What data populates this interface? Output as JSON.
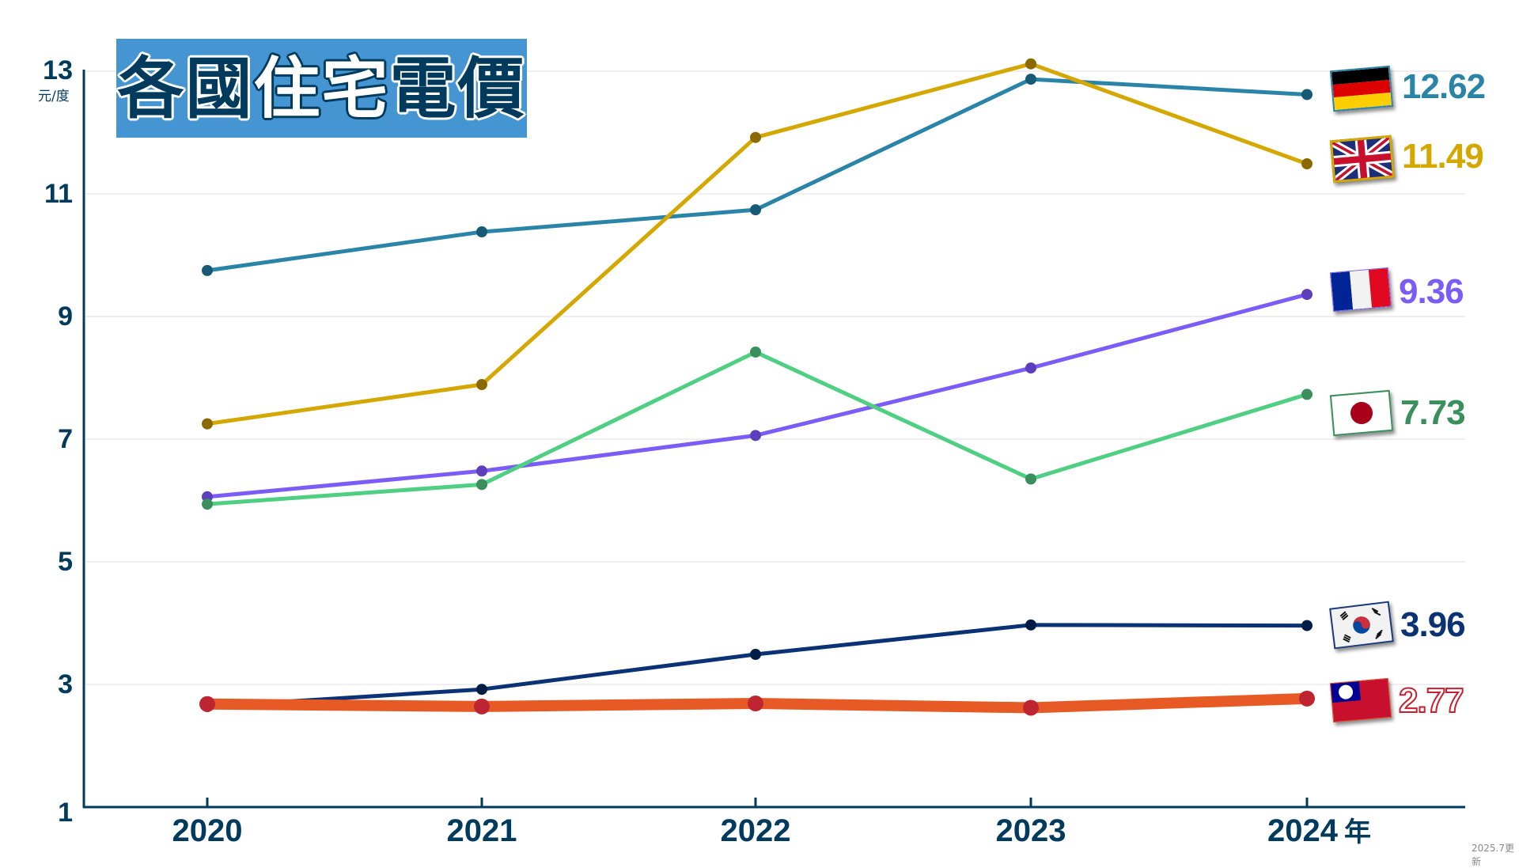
{
  "title": {
    "part1": "各國",
    "part2": "住宅",
    "part3": "電價"
  },
  "y_axis": {
    "unit": "元/度",
    "ticks": [
      "13",
      "11",
      "9",
      "7",
      "5",
      "3",
      "1"
    ]
  },
  "x_axis": {
    "ticks": [
      "2020",
      "2021",
      "2022",
      "2023",
      "2024"
    ],
    "unit": "年"
  },
  "footnote": "2025.7更新",
  "colors": {
    "axis": "#003a5c",
    "title_bg": "#4495d1",
    "germany": "#2a84a8",
    "uk": "#d4a800",
    "france": "#7b5cf6",
    "japan": "#4fcf82",
    "korea": "#0a3275",
    "taiwan": "#e85a25"
  },
  "end_labels": [
    {
      "country": "Germany",
      "flag": "germany-flag-icon",
      "value": "12.62",
      "color": "#2a84a8"
    },
    {
      "country": "UK",
      "flag": "uk-flag-icon",
      "value": "11.49",
      "color": "#d4a800"
    },
    {
      "country": "France",
      "flag": "france-flag-icon",
      "value": "9.36",
      "color": "#7b5cf6"
    },
    {
      "country": "Japan",
      "flag": "japan-flag-icon",
      "value": "7.73",
      "color": "#3b8f5c"
    },
    {
      "country": "South Korea",
      "flag": "korea-flag-icon",
      "value": "3.96",
      "color": "#0a3275"
    },
    {
      "country": "Taiwan",
      "flag": "taiwan-flag-icon",
      "value": "2.77",
      "color": "#c8202e"
    }
  ],
  "chart_data": {
    "type": "line",
    "title": "各國住宅電價",
    "xlabel": "年",
    "ylabel": "元/度",
    "x": [
      2020,
      2021,
      2022,
      2023,
      2024
    ],
    "ylim": [
      1,
      13
    ],
    "yticks": [
      1,
      3,
      5,
      7,
      9,
      11,
      13
    ],
    "grid": "horizontal",
    "legend": "end-of-line flags with value labels",
    "series": [
      {
        "name": "Germany",
        "color": "#2a84a8",
        "values": [
          9.75,
          10.38,
          10.74,
          12.87,
          12.62
        ]
      },
      {
        "name": "UK",
        "color": "#d4a800",
        "values": [
          7.25,
          7.89,
          11.92,
          13.12,
          11.49
        ]
      },
      {
        "name": "France",
        "color": "#7b5cf6",
        "values": [
          6.06,
          6.48,
          7.06,
          8.16,
          9.36
        ]
      },
      {
        "name": "Japan",
        "color": "#4fcf82",
        "values": [
          5.94,
          6.26,
          8.42,
          6.35,
          7.73
        ]
      },
      {
        "name": "South Korea",
        "color": "#0a3275",
        "values": [
          2.64,
          2.92,
          3.49,
          3.97,
          3.96
        ]
      },
      {
        "name": "Taiwan",
        "color": "#e85a25",
        "values": [
          2.68,
          2.64,
          2.69,
          2.62,
          2.77
        ]
      }
    ],
    "annotations": [
      "2025.7更新"
    ]
  }
}
